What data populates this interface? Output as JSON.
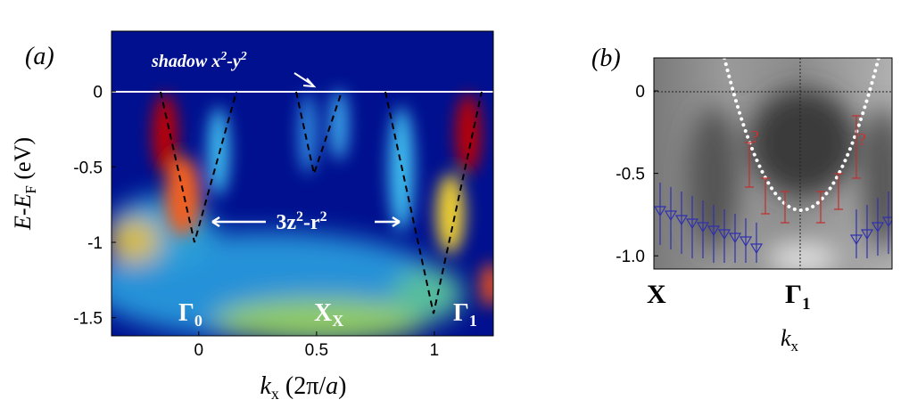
{
  "chart_data": [
    {
      "type": "heatmap",
      "panel_label": "(a)",
      "xlabel": {
        "main": "k",
        "sub": "x",
        "rest": " (2π/",
        "it": "a",
        "end": ")"
      },
      "ylabel": {
        "a": "E",
        "b": "-",
        "c": "E",
        "sub": "F",
        "d": " (eV)"
      },
      "xlim": [
        -0.37,
        1.25
      ],
      "ylim": [
        -1.62,
        0.4
      ],
      "xticks": [
        0,
        0.5,
        1
      ],
      "yticks": [
        0,
        -0.5,
        -1,
        -1.5
      ],
      "annotations": {
        "shadow": {
          "pre": "shadow x",
          "sup1": "2",
          "mid": "-y",
          "sup2": "2"
        },
        "band": {
          "pre": "3z",
          "sup1": "2",
          "mid": "-r",
          "sup2": "2"
        },
        "gamma0": {
          "main": "Γ",
          "sub": "0"
        },
        "xx": {
          "main": "X",
          "sub": "X"
        },
        "gamma1": {
          "main": "Γ",
          "sub": "1"
        }
      }
    },
    {
      "type": "heatmap",
      "panel_label": "(b)",
      "xlabel": {
        "main": "k",
        "sub": "x"
      },
      "ylim": [
        -1.08,
        0.2
      ],
      "yticks": [
        0,
        -0.5,
        {
          "value": -1,
          "label": "-1.0"
        }
      ],
      "annotations": {
        "x": "X",
        "gamma1": {
          "main": "Γ",
          "sub": "1"
        },
        "q": "?"
      }
    }
  ]
}
